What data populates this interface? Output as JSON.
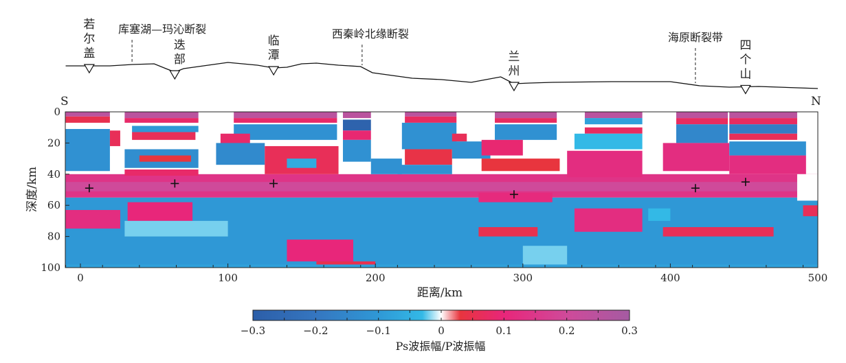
{
  "chart_data": {
    "type": "heatmap",
    "title": "",
    "xlabel": "距离/km",
    "ylabel": "深度/km",
    "xlim": [
      -10,
      500
    ],
    "ylim": [
      0,
      100
    ],
    "xticks": [
      0,
      100,
      200,
      300,
      400,
      500
    ],
    "yticks": [
      0,
      20,
      40,
      60,
      80,
      100
    ],
    "direction_labels": {
      "left": "S",
      "right": "N"
    },
    "colorbar": {
      "label": "Ps波振幅/P波振幅",
      "range": [
        -0.3,
        0.3
      ],
      "ticks": [
        "−0.3",
        "−0.2",
        "−0.1",
        "0",
        "0.1",
        "0.2",
        "0.3"
      ],
      "stops": [
        {
          "v": -0.3,
          "c": "#2c5ea8"
        },
        {
          "v": -0.2,
          "c": "#3576c0"
        },
        {
          "v": -0.1,
          "c": "#2f98d6"
        },
        {
          "v": -0.03,
          "c": "#33b9e6"
        },
        {
          "v": 0,
          "c": "#ffffff"
        },
        {
          "v": 0.03,
          "c": "#e8353e"
        },
        {
          "v": 0.1,
          "c": "#e8267a"
        },
        {
          "v": 0.2,
          "c": "#cf4a9a"
        },
        {
          "v": 0.3,
          "c": "#a55ba2"
        }
      ]
    },
    "stations": [
      {
        "name": "若尔盖",
        "x": 6
      },
      {
        "name": "迭部",
        "x": 64
      },
      {
        "name": "临潭",
        "x": 131
      },
      {
        "name": "兰州",
        "x": 294
      },
      {
        "name": "四个山",
        "x": 451
      }
    ],
    "faults": [
      {
        "name": "库塞湖—玛沁断裂",
        "x": 35
      },
      {
        "name": "西秦岭北缘断裂",
        "x": 191
      },
      {
        "name": "海原断裂带",
        "x": 417
      }
    ],
    "moho_picks": [
      {
        "x": 6,
        "depth": 49
      },
      {
        "x": 64,
        "depth": 46
      },
      {
        "x": 131,
        "depth": 46
      },
      {
        "x": 294,
        "depth": 53
      },
      {
        "x": 417,
        "depth": 49
      },
      {
        "x": 451,
        "depth": 45
      }
    ],
    "topography_relative": [
      [
        -10,
        34
      ],
      [
        20,
        34
      ],
      [
        35,
        36
      ],
      [
        50,
        37
      ],
      [
        58,
        30
      ],
      [
        64,
        25
      ],
      [
        70,
        30
      ],
      [
        80,
        33
      ],
      [
        90,
        36
      ],
      [
        100,
        39
      ],
      [
        120,
        35
      ],
      [
        131,
        31
      ],
      [
        140,
        32
      ],
      [
        150,
        37
      ],
      [
        160,
        38
      ],
      [
        175,
        35
      ],
      [
        190,
        33
      ],
      [
        198,
        24
      ],
      [
        225,
        16
      ],
      [
        245,
        14
      ],
      [
        265,
        10
      ],
      [
        275,
        14
      ],
      [
        285,
        18
      ],
      [
        294,
        8
      ],
      [
        305,
        9
      ],
      [
        320,
        10
      ],
      [
        360,
        11
      ],
      [
        400,
        11
      ],
      [
        420,
        5
      ],
      [
        440,
        3
      ],
      [
        460,
        4
      ],
      [
        500,
        1
      ]
    ],
    "amplitude_blocks": [
      [
        -10,
        500,
        55,
        100,
        -0.1
      ],
      [
        -10,
        500,
        40,
        55,
        0.14
      ],
      [
        -10,
        500,
        45,
        51,
        0.2
      ],
      [
        -10,
        20,
        0,
        3,
        0.25
      ],
      [
        -10,
        20,
        3,
        7,
        0.05
      ],
      [
        -10,
        20,
        11,
        38,
        -0.12
      ],
      [
        20,
        27,
        12,
        22,
        0.06
      ],
      [
        -10,
        27,
        63,
        75,
        0.12
      ],
      [
        -10,
        27,
        75,
        100,
        -0.1
      ],
      [
        30,
        80,
        0,
        4,
        0.25
      ],
      [
        30,
        80,
        4,
        7,
        0.08
      ],
      [
        35,
        80,
        9,
        13,
        -0.1
      ],
      [
        35,
        78,
        13,
        18,
        0.06
      ],
      [
        30,
        80,
        24,
        36,
        -0.13
      ],
      [
        40,
        75,
        28,
        32,
        0.03
      ],
      [
        30,
        80,
        37,
        41,
        0.08
      ],
      [
        32,
        76,
        58,
        70,
        0.1
      ],
      [
        30,
        100,
        70,
        80,
        -0.02
      ],
      [
        104,
        174,
        0,
        4,
        0.25
      ],
      [
        104,
        174,
        4,
        7,
        0.08
      ],
      [
        104,
        174,
        8,
        18,
        -0.12
      ],
      [
        95,
        115,
        14,
        22,
        0.08
      ],
      [
        92,
        125,
        20,
        34,
        -0.14
      ],
      [
        125,
        175,
        22,
        40,
        0.06
      ],
      [
        140,
        160,
        30,
        36,
        -0.06
      ],
      [
        178,
        197,
        0,
        4,
        0.25
      ],
      [
        178,
        197,
        5,
        12,
        -0.28
      ],
      [
        178,
        197,
        12,
        18,
        0.09
      ],
      [
        178,
        197,
        18,
        32,
        -0.12
      ],
      [
        197,
        218,
        30,
        40,
        -0.12
      ],
      [
        220,
        255,
        0,
        3,
        0.25
      ],
      [
        220,
        255,
        3,
        7,
        0.07
      ],
      [
        218,
        255,
        7,
        24,
        -0.12
      ],
      [
        220,
        252,
        24,
        34,
        0.04
      ],
      [
        215,
        252,
        34,
        40,
        -0.12
      ],
      [
        252,
        262,
        14,
        19,
        0.06
      ],
      [
        252,
        278,
        19,
        30,
        -0.12
      ],
      [
        281,
        323,
        0,
        4,
        0.25
      ],
      [
        281,
        323,
        4,
        7,
        0.07
      ],
      [
        281,
        323,
        8,
        18,
        -0.12
      ],
      [
        272,
        300,
        18,
        28,
        0.09
      ],
      [
        272,
        325,
        30,
        38,
        0.03
      ],
      [
        270,
        320,
        52,
        58,
        0.11
      ],
      [
        270,
        310,
        74,
        80,
        0.05
      ],
      [
        342,
        381,
        0,
        4,
        0.25
      ],
      [
        342,
        381,
        4,
        8,
        -0.08
      ],
      [
        342,
        381,
        10,
        14,
        0.07
      ],
      [
        335,
        381,
        14,
        24,
        -0.03
      ],
      [
        330,
        381,
        25,
        42,
        0.12
      ],
      [
        335,
        381,
        62,
        77,
        0.12
      ],
      [
        385,
        400,
        62,
        70,
        -0.03
      ],
      [
        404,
        439,
        0,
        4,
        0.25
      ],
      [
        404,
        439,
        4,
        8,
        0.07
      ],
      [
        404,
        439,
        8,
        20,
        -0.15
      ],
      [
        395,
        440,
        20,
        38,
        0.12
      ],
      [
        395,
        470,
        74,
        80,
        0.06
      ],
      [
        440,
        486,
        0,
        4,
        0.25
      ],
      [
        440,
        486,
        4,
        8,
        0.07
      ],
      [
        440,
        486,
        8,
        14,
        -0.18
      ],
      [
        440,
        486,
        14,
        18,
        0.06
      ],
      [
        440,
        492,
        19,
        28,
        -0.12
      ],
      [
        440,
        492,
        28,
        40,
        0.12
      ],
      [
        486,
        500,
        40,
        57,
        0
      ],
      [
        490,
        500,
        60,
        67,
        0.06
      ],
      [
        140,
        185,
        82,
        96,
        0.1
      ],
      [
        160,
        200,
        96,
        100,
        0.05
      ],
      [
        300,
        330,
        86,
        100,
        -0.02
      ],
      [
        -10,
        500,
        98,
        100,
        -0.08
      ]
    ]
  }
}
